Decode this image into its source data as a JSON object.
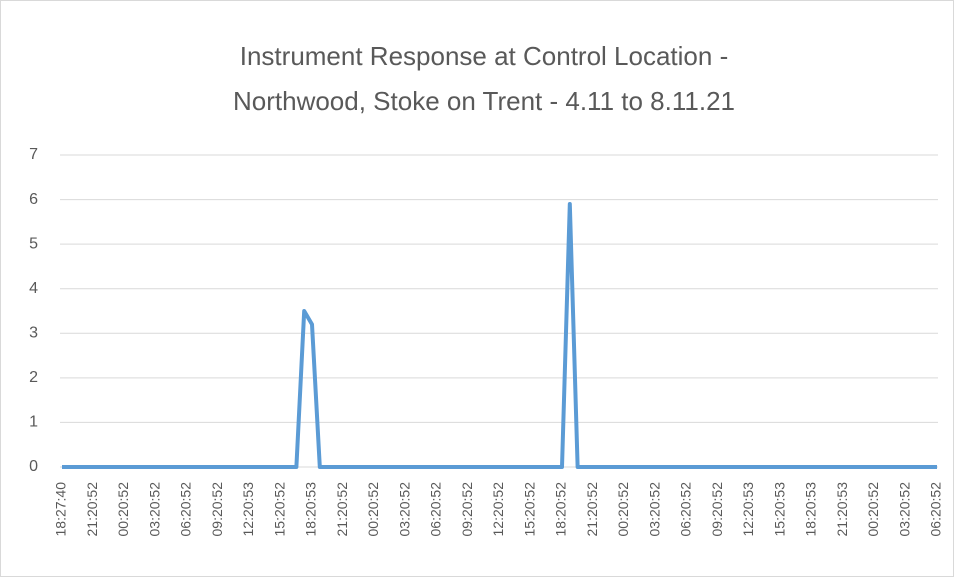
{
  "chart_data": {
    "type": "line",
    "title": [
      "Instrument Response at Control Location -",
      "Northwood, Stoke on Trent - 4.11 to 8.11.21"
    ],
    "categories": [
      "18:27:40",
      null,
      null,
      null,
      "21:20:52",
      null,
      null,
      null,
      "00:20:52",
      null,
      null,
      null,
      "03:20:52",
      null,
      null,
      null,
      "06:20:52",
      null,
      null,
      null,
      "09:20:52",
      null,
      null,
      null,
      "12:20:53",
      null,
      null,
      null,
      "15:20:52",
      null,
      null,
      null,
      "18:20:53",
      null,
      null,
      null,
      "21:20:52",
      null,
      null,
      null,
      "00:20:52",
      null,
      null,
      null,
      "03:20:52",
      null,
      null,
      null,
      "06:20:52",
      null,
      null,
      null,
      "09:20:52",
      null,
      null,
      null,
      "12:20:52",
      null,
      null,
      null,
      "15:20:52",
      null,
      null,
      null,
      "18:20:52",
      null,
      null,
      null,
      "21:20:52",
      null,
      null,
      null,
      "00:20:52",
      null,
      null,
      null,
      "03:20:52",
      null,
      null,
      null,
      "06:20:52",
      null,
      null,
      null,
      "09:20:52",
      null,
      null,
      null,
      "12:20:53",
      null,
      null,
      null,
      "15:20:53",
      null,
      null,
      null,
      "18:20:53",
      null,
      null,
      null,
      "21:20:53",
      null,
      null,
      null,
      "00:20:52",
      null,
      null,
      null,
      "03:20:52",
      null,
      null,
      null,
      "06:20:52"
    ],
    "series": [
      {
        "color": "#5b9bd5",
        "values": [
          0,
          0,
          0,
          0,
          0,
          0,
          0,
          0,
          0,
          0,
          0,
          0,
          0,
          0,
          0,
          0,
          0,
          0,
          0,
          0,
          0,
          0,
          0,
          0,
          0,
          0,
          0,
          0,
          0,
          0,
          0,
          3.5,
          3.2,
          0,
          0,
          0,
          0,
          0,
          0,
          0,
          0,
          0,
          0,
          0,
          0,
          0,
          0,
          0,
          0,
          0,
          0,
          0,
          0,
          0,
          0,
          0,
          0,
          0,
          0,
          0,
          0,
          0,
          0,
          0,
          0,
          5.9,
          0,
          0,
          0,
          0,
          0,
          0,
          0,
          0,
          0,
          0,
          0,
          0,
          0,
          0,
          0,
          0,
          0,
          0,
          0,
          0,
          0,
          0,
          0,
          0,
          0,
          0,
          0,
          0,
          0,
          0,
          0,
          0,
          0,
          0,
          0,
          0,
          0,
          0,
          0,
          0,
          0,
          0,
          0,
          0,
          0,
          0,
          0
        ]
      }
    ],
    "ylim": [
      0,
      7
    ],
    "yticks": [
      0,
      1,
      2,
      3,
      4,
      5,
      6,
      7
    ],
    "grid": true
  }
}
